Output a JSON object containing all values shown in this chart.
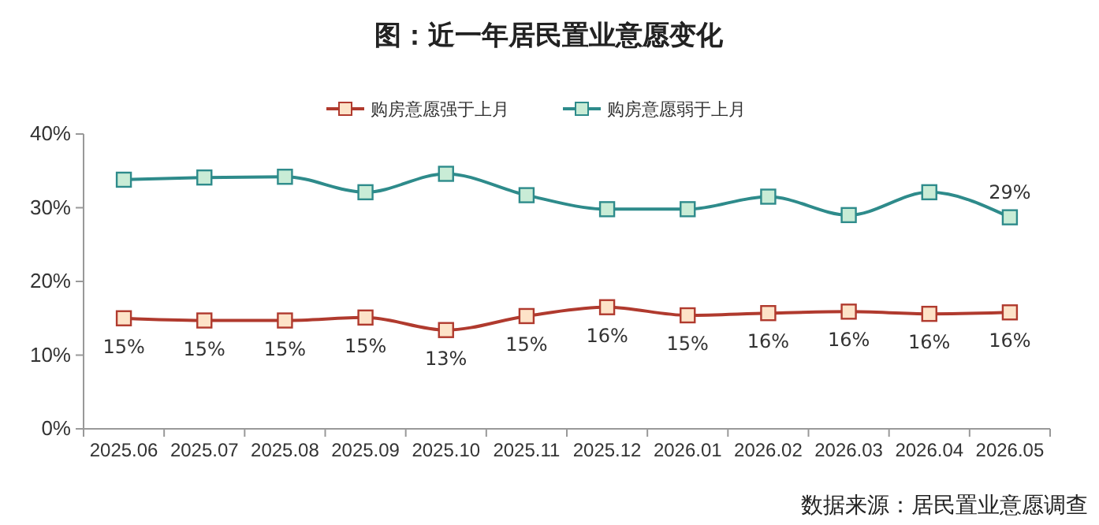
{
  "chart_data": {
    "type": "line",
    "title": "图：近一年居民置业意愿变化",
    "annotations": [
      "数据来源：居民置业意愿调查"
    ],
    "categories": [
      "2025.06",
      "2025.07",
      "2025.08",
      "2025.09",
      "2025.10",
      "2025.11",
      "2025.12",
      "2026.01",
      "2026.02",
      "2026.03",
      "2026.04",
      "2026.05"
    ],
    "series": [
      {
        "name": "购房意愿强于上月",
        "color": "#b03a2e",
        "values": [
          15,
          14.7,
          14.7,
          15.1,
          13.4,
          15.3,
          16.5,
          15.4,
          15.7,
          15.9,
          15.6,
          15.8
        ],
        "value_labels": [
          "15%",
          "15%",
          "15%",
          "15%",
          "13%",
          "15%",
          "16%",
          "15%",
          "16%",
          "16%",
          "16%",
          "16%"
        ]
      },
      {
        "name": "购房意愿弱于上月",
        "color": "#2e8b8b",
        "values": [
          33.8,
          34.1,
          34.2,
          32.1,
          34.6,
          31.7,
          29.8,
          29.8,
          31.5,
          29.0,
          32.1,
          28.7
        ],
        "value_labels": [
          null,
          null,
          null,
          null,
          null,
          null,
          null,
          null,
          null,
          null,
          null,
          "29%"
        ]
      }
    ],
    "ylim": [
      0,
      40
    ],
    "yticks": [
      {
        "value": 0,
        "label": "0%"
      },
      {
        "value": 10,
        "label": "10%"
      },
      {
        "value": 20,
        "label": "20%"
      },
      {
        "value": 30,
        "label": "30%"
      },
      {
        "value": 40,
        "label": "40%"
      }
    ],
    "grid": false,
    "legend": "top",
    "marker": "square",
    "line_style": "solid"
  }
}
